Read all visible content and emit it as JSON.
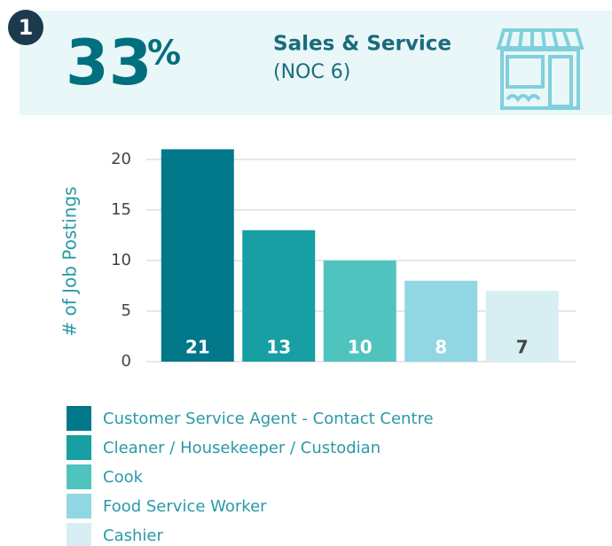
{
  "header": {
    "badge": "1",
    "value": 33,
    "unit": "%",
    "title": "Sales & Service",
    "subtitle": "(NOC 6)"
  },
  "chart_data": {
    "type": "bar",
    "ylabel": "# of Job Postings",
    "categories": [
      "Customer Service Agent - Contact Centre",
      "Cleaner / Housekeeper / Custodian",
      "Cook",
      "Food Service Worker",
      "Cashier"
    ],
    "values": [
      21,
      13,
      10,
      8,
      7
    ],
    "colors": [
      "#00788a",
      "#179fa3",
      "#4fc4be",
      "#91d7e3",
      "#d7eff2"
    ],
    "label_colors": [
      "#ffffff",
      "#ffffff",
      "#ffffff",
      "#ffffff",
      "#444444"
    ],
    "ylim": [
      0,
      22
    ],
    "yticks": [
      0,
      5,
      10,
      15,
      20
    ],
    "grid": true
  }
}
